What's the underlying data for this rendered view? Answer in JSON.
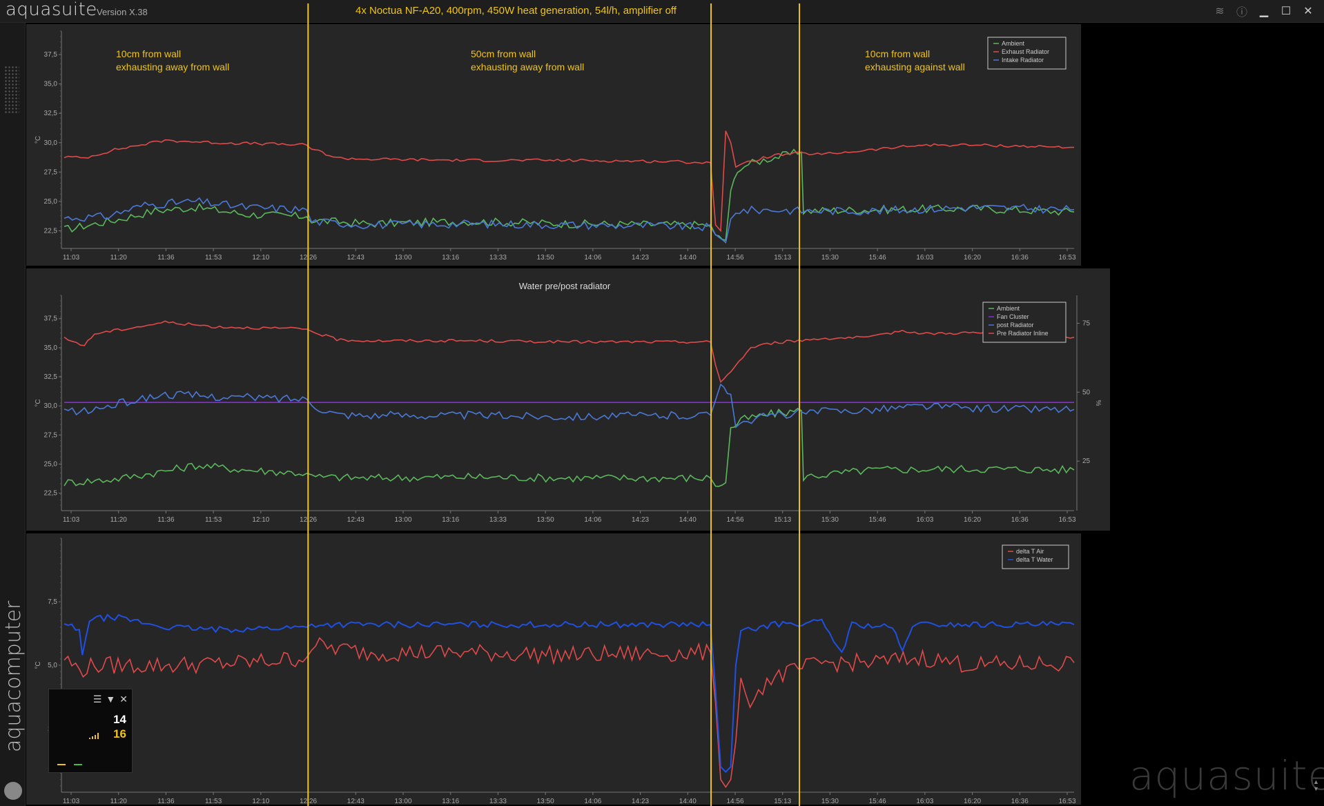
{
  "app": {
    "name": "aquasuite",
    "version": "Version X.38",
    "brand": "aquacomputer",
    "watermark": "aquasuite"
  },
  "page_title": "4x Noctua NF-A20, 400rpm, 450W heat generation, 54l/h, amplifier off",
  "window_buttons": [
    "layers-icon",
    "info-icon",
    "minimize-icon",
    "maximize-icon",
    "close-icon"
  ],
  "time_ticks": [
    "11:03",
    "11:20",
    "11:36",
    "11:53",
    "12:10",
    "12:26",
    "12:43",
    "13:00",
    "13:16",
    "13:33",
    "13:50",
    "14:06",
    "14:23",
    "14:40",
    "14:56",
    "15:13",
    "15:30",
    "15:46",
    "16:03",
    "16:20",
    "16:36",
    "16:53"
  ],
  "annotations": [
    {
      "line1": "10cm from wall",
      "line2": "exhausting away from wall"
    },
    {
      "line1": "50cm from wall",
      "line2": "exhausting away from wall"
    },
    {
      "line1": "10cm from wall",
      "line2": "exhausting against wall"
    }
  ],
  "colors": {
    "accent": "#f0c419",
    "green": "#5cb85c",
    "red": "#e04a4a",
    "blue": "#4a79d8",
    "purple": "#8a2be2",
    "blue_strong": "#2050e0"
  },
  "chart_data": [
    {
      "type": "line",
      "title": "",
      "ylabel": "°C",
      "ylim": [
        21,
        39.5
      ],
      "yticks": [
        "22,5",
        "25,0",
        "27,5",
        "30,0",
        "32,5",
        "35,0",
        "37,5"
      ],
      "legend": [
        "Ambient",
        "Exhaust Radiator",
        "Intake Radiator"
      ],
      "legend_position": "top-right",
      "series": [
        {
          "name": "Ambient",
          "color": "green",
          "points": [
            [
              0,
              22.6
            ],
            [
              0.05,
              23.4
            ],
            [
              0.09,
              24.2
            ],
            [
              0.13,
              24.5
            ],
            [
              0.18,
              23.9
            ],
            [
              0.24,
              23.7
            ],
            [
              0.245,
              23.4
            ],
            [
              0.3,
              23.1
            ],
            [
              0.4,
              23.3
            ],
            [
              0.5,
              23.1
            ],
            [
              0.62,
              23.0
            ],
            [
              0.64,
              23.0
            ],
            [
              0.645,
              22.0
            ],
            [
              0.655,
              21.7
            ],
            [
              0.66,
              26.0
            ],
            [
              0.67,
              28.0
            ],
            [
              0.7,
              28.7
            ],
            [
              0.73,
              29.2
            ],
            [
              0.732,
              24.2
            ],
            [
              0.8,
              24.3
            ],
            [
              0.9,
              24.4
            ],
            [
              1.0,
              24.1
            ]
          ]
        },
        {
          "name": "Exhaust Radiator",
          "color": "red",
          "points": [
            [
              0,
              28.8
            ],
            [
              0.02,
              28.7
            ],
            [
              0.05,
              29.4
            ],
            [
              0.1,
              30.2
            ],
            [
              0.15,
              30.0
            ],
            [
              0.2,
              29.9
            ],
            [
              0.24,
              29.8
            ],
            [
              0.245,
              29.5
            ],
            [
              0.27,
              28.7
            ],
            [
              0.3,
              28.6
            ],
            [
              0.4,
              28.5
            ],
            [
              0.5,
              28.5
            ],
            [
              0.6,
              28.4
            ],
            [
              0.64,
              28.3
            ],
            [
              0.645,
              23.0
            ],
            [
              0.65,
              22.5
            ],
            [
              0.655,
              31.0
            ],
            [
              0.66,
              30.0
            ],
            [
              0.665,
              28.0
            ],
            [
              0.7,
              28.9
            ],
            [
              0.73,
              29.1
            ],
            [
              0.75,
              29.0
            ],
            [
              0.8,
              29.4
            ],
            [
              0.85,
              29.8
            ],
            [
              0.9,
              29.8
            ],
            [
              1.0,
              29.6
            ]
          ]
        },
        {
          "name": "Intake Radiator",
          "color": "blue",
          "points": [
            [
              0,
              23.6
            ],
            [
              0.04,
              23.7
            ],
            [
              0.08,
              24.7
            ],
            [
              0.13,
              25.0
            ],
            [
              0.18,
              24.5
            ],
            [
              0.24,
              24.3
            ],
            [
              0.245,
              23.3
            ],
            [
              0.3,
              23.0
            ],
            [
              0.4,
              23.1
            ],
            [
              0.5,
              23.0
            ],
            [
              0.6,
              22.9
            ],
            [
              0.64,
              22.8
            ],
            [
              0.645,
              22.0
            ],
            [
              0.655,
              21.5
            ],
            [
              0.66,
              23.5
            ],
            [
              0.665,
              24.2
            ],
            [
              0.7,
              24.3
            ],
            [
              0.73,
              24.2
            ],
            [
              0.8,
              24.2
            ],
            [
              0.9,
              24.5
            ],
            [
              1.0,
              24.3
            ]
          ]
        }
      ]
    },
    {
      "type": "line",
      "title": "Water pre/post radiator",
      "ylabel": "°C",
      "y2label": "%",
      "ylim": [
        21,
        39.5
      ],
      "yticks": [
        "22,5",
        "25,0",
        "27,5",
        "30,0",
        "32,5",
        "35,0",
        "37,5"
      ],
      "y2ticks": [
        "25",
        "50",
        "75"
      ],
      "legend": [
        "Ambient",
        "Fan Cluster",
        "post Radiator",
        "Pre Radiator Inline"
      ],
      "legend_position": "top-right",
      "series": [
        {
          "name": "Ambient",
          "color": "green",
          "points": [
            [
              0,
              23.4
            ],
            [
              0.05,
              23.7
            ],
            [
              0.1,
              24.4
            ],
            [
              0.13,
              24.9
            ],
            [
              0.18,
              24.5
            ],
            [
              0.24,
              24.2
            ],
            [
              0.245,
              23.9
            ],
            [
              0.3,
              23.8
            ],
            [
              0.4,
              23.9
            ],
            [
              0.5,
              23.8
            ],
            [
              0.62,
              23.8
            ],
            [
              0.64,
              23.8
            ],
            [
              0.645,
              23.2
            ],
            [
              0.655,
              23.4
            ],
            [
              0.66,
              28.0
            ],
            [
              0.67,
              28.8
            ],
            [
              0.7,
              29.3
            ],
            [
              0.73,
              29.6
            ],
            [
              0.732,
              23.9
            ],
            [
              0.8,
              24.5
            ],
            [
              0.9,
              24.6
            ],
            [
              1.0,
              24.5
            ]
          ]
        },
        {
          "name": "Fan Cluster",
          "color": "purple",
          "points": [
            [
              0,
              30.3
            ],
            [
              1.0,
              30.3
            ]
          ]
        },
        {
          "name": "post Radiator",
          "color": "blue",
          "points": [
            [
              0,
              29.6
            ],
            [
              0.02,
              29.5
            ],
            [
              0.07,
              30.5
            ],
            [
              0.1,
              31.0
            ],
            [
              0.15,
              30.8
            ],
            [
              0.24,
              30.6
            ],
            [
              0.245,
              30.1
            ],
            [
              0.27,
              29.3
            ],
            [
              0.3,
              29.2
            ],
            [
              0.4,
              29.2
            ],
            [
              0.5,
              29.1
            ],
            [
              0.64,
              29.2
            ],
            [
              0.645,
              30.5
            ],
            [
              0.65,
              32.0
            ],
            [
              0.66,
              31.0
            ],
            [
              0.665,
              28.5
            ],
            [
              0.7,
              29.2
            ],
            [
              0.75,
              29.5
            ],
            [
              0.8,
              29.7
            ],
            [
              0.85,
              30.0
            ],
            [
              0.9,
              29.8
            ],
            [
              1.0,
              29.7
            ]
          ]
        },
        {
          "name": "Pre Radiator Inline",
          "color": "red",
          "points": [
            [
              0,
              35.8
            ],
            [
              0.02,
              35.2
            ],
            [
              0.03,
              36.2
            ],
            [
              0.08,
              36.9
            ],
            [
              0.1,
              37.2
            ],
            [
              0.15,
              36.8
            ],
            [
              0.24,
              36.6
            ],
            [
              0.245,
              36.4
            ],
            [
              0.27,
              35.7
            ],
            [
              0.3,
              35.6
            ],
            [
              0.4,
              35.6
            ],
            [
              0.5,
              35.5
            ],
            [
              0.64,
              35.5
            ],
            [
              0.645,
              33.5
            ],
            [
              0.65,
              32.0
            ],
            [
              0.66,
              33.0
            ],
            [
              0.68,
              35.0
            ],
            [
              0.7,
              35.4
            ],
            [
              0.75,
              35.8
            ],
            [
              0.8,
              35.9
            ],
            [
              0.83,
              36.5
            ],
            [
              0.85,
              36.2
            ],
            [
              0.9,
              36.3
            ],
            [
              0.95,
              36.0
            ],
            [
              1.0,
              35.9
            ]
          ]
        }
      ]
    },
    {
      "type": "line",
      "title": "",
      "ylabel": "°C",
      "ylim": [
        0,
        10
      ],
      "yticks": [
        "2,5",
        "5,0",
        "7,5"
      ],
      "legend": [
        "delta T Air",
        "delta T Water"
      ],
      "legend_position": "top-right",
      "series": [
        {
          "name": "delta T Air",
          "color": "red",
          "points": [
            [
              0,
              5.3
            ],
            [
              0.015,
              4.8
            ],
            [
              0.03,
              5.0
            ],
            [
              0.1,
              5.0
            ],
            [
              0.18,
              5.1
            ],
            [
              0.24,
              5.3
            ],
            [
              0.245,
              5.8
            ],
            [
              0.3,
              5.5
            ],
            [
              0.4,
              5.5
            ],
            [
              0.5,
              5.4
            ],
            [
              0.64,
              5.5
            ],
            [
              0.645,
              3.5
            ],
            [
              0.65,
              0.5
            ],
            [
              0.655,
              0.2
            ],
            [
              0.66,
              0.5
            ],
            [
              0.665,
              2.0
            ],
            [
              0.67,
              4.5
            ],
            [
              0.675,
              3.5
            ],
            [
              0.7,
              4.5
            ],
            [
              0.75,
              5.1
            ],
            [
              0.8,
              5.1
            ],
            [
              0.85,
              5.3
            ],
            [
              0.9,
              5.0
            ],
            [
              1.0,
              5.1
            ]
          ]
        },
        {
          "name": "delta T Water",
          "color": "blue_strong",
          "points": [
            [
              0,
              6.6
            ],
            [
              0.015,
              6.4
            ],
            [
              0.018,
              5.4
            ],
            [
              0.025,
              6.8
            ],
            [
              0.05,
              6.9
            ],
            [
              0.1,
              6.5
            ],
            [
              0.15,
              6.4
            ],
            [
              0.24,
              6.5
            ],
            [
              0.245,
              6.6
            ],
            [
              0.3,
              6.6
            ],
            [
              0.4,
              6.6
            ],
            [
              0.5,
              6.6
            ],
            [
              0.64,
              6.6
            ],
            [
              0.645,
              4.0
            ],
            [
              0.65,
              1.0
            ],
            [
              0.655,
              0.8
            ],
            [
              0.66,
              1.0
            ],
            [
              0.665,
              5.0
            ],
            [
              0.67,
              6.3
            ],
            [
              0.7,
              6.6
            ],
            [
              0.75,
              6.7
            ],
            [
              0.77,
              5.5
            ],
            [
              0.78,
              6.6
            ],
            [
              0.82,
              6.5
            ],
            [
              0.83,
              5.5
            ],
            [
              0.84,
              6.6
            ],
            [
              0.9,
              6.6
            ],
            [
              1.0,
              6.6
            ]
          ]
        }
      ]
    }
  ],
  "widget": {
    "value1": "14",
    "value2": "16"
  }
}
